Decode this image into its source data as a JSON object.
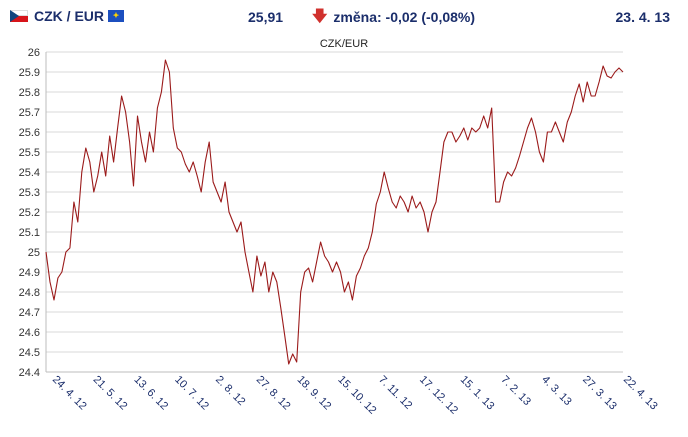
{
  "header": {
    "pair_label": "CZK / EUR",
    "rate": "25,91",
    "change_label": "změna: -0,02 (-0,08%)",
    "date": "23. 4. 13"
  },
  "icons": {
    "change_direction": "arrow-down-icon",
    "flag_left": "czech-flag-icon",
    "flag_right": "eu-flag-icon"
  },
  "colors": {
    "line": "#9b1b1b",
    "grid": "#d9d9d9",
    "text": "#1b2e6b",
    "down": "#d0312d"
  },
  "chart_data": {
    "type": "line",
    "title": "CZK/EUR",
    "ylim": [
      24.4,
      26.0
    ],
    "yticks": [
      "24.4",
      "24.5",
      "24.6",
      "24.7",
      "24.8",
      "24.9",
      "25",
      "25.1",
      "25.2",
      "25.3",
      "25.4",
      "25.5",
      "25.6",
      "25.7",
      "25.8",
      "25.9",
      "26"
    ],
    "xticks": [
      "24. 4. 12",
      "21. 5. 12",
      "13. 6. 12",
      "10. 7. 12",
      "2. 8. 12",
      "27. 8. 12",
      "18. 9. 12",
      "15. 10. 12",
      "7. 11. 12",
      "17. 12. 12",
      "15. 1. 13",
      "7. 2. 13",
      "4. 3. 13",
      "27. 3. 13",
      "22. 4. 13"
    ],
    "grid": "horizontal",
    "series": [
      {
        "values": [
          25.0,
          24.85,
          24.76,
          24.87,
          24.9,
          25.0,
          25.02,
          25.25,
          25.15,
          25.4,
          25.52,
          25.45,
          25.3,
          25.38,
          25.5,
          25.38,
          25.58,
          25.45,
          25.62,
          25.78,
          25.7,
          25.55,
          25.33,
          25.68,
          25.55,
          25.45,
          25.6,
          25.5,
          25.72,
          25.8,
          25.96,
          25.9,
          25.62,
          25.52,
          25.5,
          25.44,
          25.4,
          25.45,
          25.38,
          25.3,
          25.45,
          25.55,
          25.35,
          25.3,
          25.25,
          25.35,
          25.2,
          25.15,
          25.1,
          25.15,
          25.0,
          24.9,
          24.8,
          24.98,
          24.88,
          24.95,
          24.8,
          24.9,
          24.85,
          24.72,
          24.58,
          24.44,
          24.49,
          24.45,
          24.8,
          24.9,
          24.92,
          24.85,
          24.95,
          25.05,
          24.98,
          24.95,
          24.9,
          24.95,
          24.9,
          24.8,
          24.85,
          24.76,
          24.88,
          24.92,
          24.98,
          25.02,
          25.1,
          25.24,
          25.3,
          25.4,
          25.32,
          25.25,
          25.22,
          25.28,
          25.25,
          25.2,
          25.28,
          25.22,
          25.25,
          25.2,
          25.1,
          25.2,
          25.25,
          25.4,
          25.55,
          25.6,
          25.6,
          25.55,
          25.58,
          25.62,
          25.56,
          25.62,
          25.6,
          25.62,
          25.68,
          25.62,
          25.72,
          25.25,
          25.25,
          25.35,
          25.4,
          25.38,
          25.42,
          25.48,
          25.55,
          25.62,
          25.67,
          25.6,
          25.5,
          25.45,
          25.6,
          25.6,
          25.65,
          25.6,
          25.55,
          25.65,
          25.7,
          25.78,
          25.84,
          25.75,
          25.85,
          25.78,
          25.78,
          25.85,
          25.93,
          25.88,
          25.87,
          25.9,
          25.92,
          25.9
        ]
      }
    ]
  }
}
